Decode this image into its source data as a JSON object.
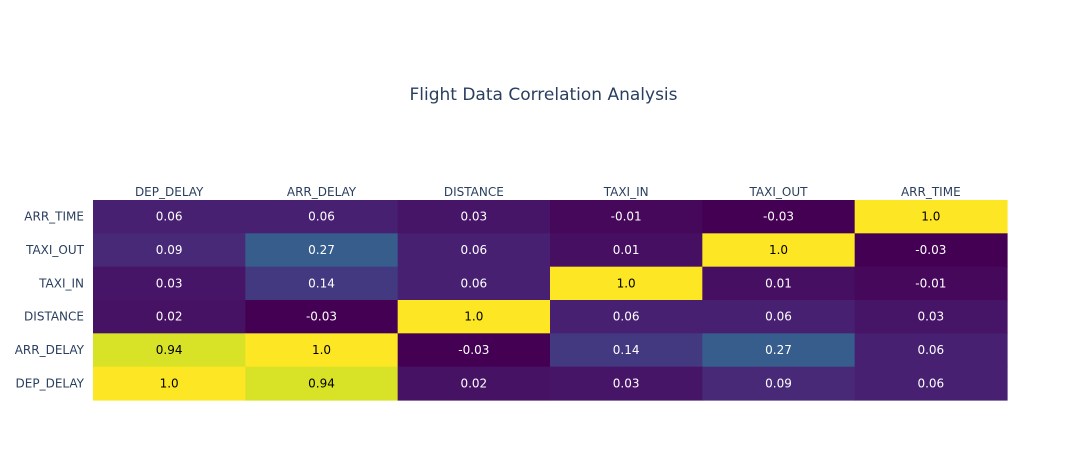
{
  "chart_data": {
    "type": "heatmap",
    "title": "Flight Data Correlation Analysis",
    "x_labels": [
      "DEP_DELAY",
      "ARR_DELAY",
      "DISTANCE",
      "TAXI_IN",
      "TAXI_OUT",
      "ARR_TIME"
    ],
    "y_labels": [
      "ARR_TIME",
      "TAXI_OUT",
      "TAXI_IN",
      "DISTANCE",
      "ARR_DELAY",
      "DEP_DELAY"
    ],
    "values": [
      [
        0.06,
        0.06,
        0.03,
        -0.01,
        -0.03,
        1.0
      ],
      [
        0.09,
        0.27,
        0.06,
        0.01,
        1.0,
        -0.03
      ],
      [
        0.03,
        0.14,
        0.06,
        1.0,
        0.01,
        -0.01
      ],
      [
        0.02,
        -0.03,
        1.0,
        0.06,
        0.06,
        0.03
      ],
      [
        0.94,
        1.0,
        -0.03,
        0.14,
        0.27,
        0.06
      ],
      [
        1.0,
        0.94,
        0.02,
        0.03,
        0.09,
        0.06
      ]
    ],
    "text": [
      [
        "0.06",
        "0.06",
        "0.03",
        "-0.01",
        "-0.03",
        "1.0"
      ],
      [
        "0.09",
        "0.27",
        "0.06",
        "0.01",
        "1.0",
        "-0.03"
      ],
      [
        "0.03",
        "0.14",
        "0.06",
        "1.0",
        "0.01",
        "-0.01"
      ],
      [
        "0.02",
        "-0.03",
        "1.0",
        "0.06",
        "0.06",
        "0.03"
      ],
      [
        "0.94",
        "1.0",
        "-0.03",
        "0.14",
        "0.27",
        "0.06"
      ],
      [
        "1.0",
        "0.94",
        "0.02",
        "0.03",
        "0.09",
        "0.06"
      ]
    ],
    "x_axis_side": "top",
    "colorscale": "Viridis",
    "zmin": -0.03,
    "zmax": 1.0,
    "showscale": false,
    "colors": {
      "title": "#2a3f5f",
      "tick_text": "#2a3f5f",
      "background": "#ffffff",
      "text_on_dark": "#ffffff",
      "text_on_light": "#000000"
    }
  }
}
